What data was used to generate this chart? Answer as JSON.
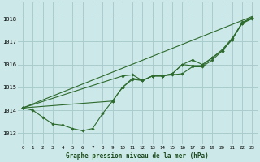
{
  "title": "Graphe pression niveau de la mer (hPa)",
  "background_color": "#cce8e8",
  "grid_color": "#aacccc",
  "line_color": "#2d6a2d",
  "xlim": [
    -0.5,
    23.5
  ],
  "ylim": [
    1012.5,
    1018.7
  ],
  "yticks": [
    1013,
    1014,
    1015,
    1016,
    1017,
    1018
  ],
  "xticks": [
    0,
    1,
    2,
    3,
    4,
    5,
    6,
    7,
    8,
    9,
    10,
    11,
    12,
    13,
    14,
    15,
    16,
    17,
    18,
    19,
    20,
    21,
    22,
    23
  ],
  "series": [
    {
      "x": [
        0,
        1,
        2,
        3,
        4,
        5,
        6,
        7,
        8,
        9,
        10,
        11,
        12,
        13,
        14,
        15,
        16,
        17,
        18,
        19,
        20,
        21,
        22,
        23
      ],
      "y": [
        1014.1,
        1014.0,
        1013.7,
        1013.4,
        1013.35,
        1013.2,
        1013.1,
        1013.2,
        1013.85,
        1014.4,
        1015.0,
        1015.4,
        1015.3,
        1015.5,
        1015.5,
        1015.55,
        1015.6,
        1015.9,
        1015.9,
        1016.2,
        1016.6,
        1017.1,
        1017.8,
        1018.0
      ],
      "markers": true
    },
    {
      "x": [
        0,
        10,
        11,
        12,
        13,
        14,
        15,
        16,
        17,
        18,
        19,
        20,
        21,
        22,
        23
      ],
      "y": [
        1014.1,
        1015.5,
        1015.55,
        1015.3,
        1015.5,
        1015.5,
        1015.6,
        1016.0,
        1015.95,
        1015.95,
        1016.3,
        1016.6,
        1017.1,
        1017.85,
        1018.05
      ],
      "markers": true
    },
    {
      "x": [
        0,
        9,
        10,
        11,
        12,
        13,
        14,
        15,
        16,
        17,
        18,
        19,
        20,
        21,
        22,
        23
      ],
      "y": [
        1014.1,
        1014.4,
        1015.0,
        1015.35,
        1015.3,
        1015.5,
        1015.5,
        1015.6,
        1016.0,
        1016.2,
        1016.0,
        1016.3,
        1016.65,
        1017.15,
        1017.8,
        1018.05
      ],
      "markers": true
    },
    {
      "x": [
        0,
        23
      ],
      "y": [
        1014.1,
        1018.1
      ],
      "markers": false
    }
  ]
}
